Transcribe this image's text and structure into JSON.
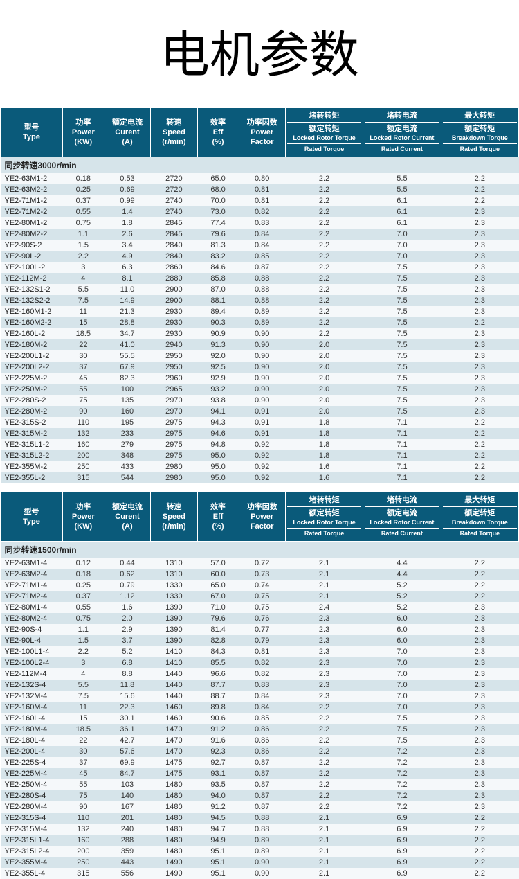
{
  "page_title": "电机参数",
  "headers": {
    "type": {
      "zh": "型号",
      "en": "Type"
    },
    "power": {
      "zh": "功率",
      "en": "Power",
      "unit": "(KW)"
    },
    "current": {
      "zh": "额定电流",
      "en": "Curent",
      "unit": "(A)"
    },
    "speed": {
      "zh": "转速",
      "en": "Speed",
      "unit": "(r/min)"
    },
    "eff": {
      "zh": "效率",
      "en": "Eff",
      "unit": "(%)"
    },
    "pf": {
      "zh": "功率因数",
      "en": "Power",
      "en2": "Factor"
    },
    "lrt": {
      "zh": "堵转转矩",
      "zh2": "额定转矩",
      "en": "Locked Rotor Torque",
      "en2": "Rated Torque"
    },
    "lrc": {
      "zh": "堵转电流",
      "zh2": "额定电流",
      "en": "Locked Rotor Current",
      "en2": "Rated Current"
    },
    "bt": {
      "zh": "最大转矩",
      "zh2": "额定转矩",
      "en": "Breakdown Torque",
      "en2": "Rated Torque"
    }
  },
  "sections": [
    {
      "label": "同步转速3000r/min",
      "rows": [
        [
          "YE2-63M1-2",
          "0.18",
          "0.53",
          "2720",
          "65.0",
          "0.80",
          "2.2",
          "5.5",
          "2.2"
        ],
        [
          "YE2-63M2-2",
          "0.25",
          "0.69",
          "2720",
          "68.0",
          "0.81",
          "2.2",
          "5.5",
          "2.2"
        ],
        [
          "YE2-71M1-2",
          "0.37",
          "0.99",
          "2740",
          "70.0",
          "0.81",
          "2.2",
          "6.1",
          "2.2"
        ],
        [
          "YE2-71M2-2",
          "0.55",
          "1.4",
          "2740",
          "73.0",
          "0.82",
          "2.2",
          "6.1",
          "2.3"
        ],
        [
          "YE2-80M1-2",
          "0.75",
          "1.8",
          "2845",
          "77.4",
          "0.83",
          "2.2",
          "6.1",
          "2.3"
        ],
        [
          "YE2-80M2-2",
          "1.1",
          "2.6",
          "2845",
          "79.6",
          "0.84",
          "2.2",
          "7.0",
          "2.3"
        ],
        [
          "YE2-90S-2",
          "1.5",
          "3.4",
          "2840",
          "81.3",
          "0.84",
          "2.2",
          "7.0",
          "2.3"
        ],
        [
          "YE2-90L-2",
          "2.2",
          "4.9",
          "2840",
          "83.2",
          "0.85",
          "2.2",
          "7.0",
          "2.3"
        ],
        [
          "YE2-100L-2",
          "3",
          "6.3",
          "2860",
          "84.6",
          "0.87",
          "2.2",
          "7.5",
          "2.3"
        ],
        [
          "YE2-112M-2",
          "4",
          "8.1",
          "2880",
          "85.8",
          "0.88",
          "2.2",
          "7.5",
          "2.3"
        ],
        [
          "YE2-132S1-2",
          "5.5",
          "11.0",
          "2900",
          "87.0",
          "0.88",
          "2.2",
          "7.5",
          "2.3"
        ],
        [
          "YE2-132S2-2",
          "7.5",
          "14.9",
          "2900",
          "88.1",
          "0.88",
          "2.2",
          "7.5",
          "2.3"
        ],
        [
          "YE2-160M1-2",
          "11",
          "21.3",
          "2930",
          "89.4",
          "0.89",
          "2.2",
          "7.5",
          "2.3"
        ],
        [
          "YE2-160M2-2",
          "15",
          "28.8",
          "2930",
          "90.3",
          "0.89",
          "2.2",
          "7.5",
          "2.2"
        ],
        [
          "YE2-160L-2",
          "18.5",
          "34.7",
          "2930",
          "90.9",
          "0.90",
          "2.2",
          "7.5",
          "2.3"
        ],
        [
          "YE2-180M-2",
          "22",
          "41.0",
          "2940",
          "91.3",
          "0.90",
          "2.0",
          "7.5",
          "2.3"
        ],
        [
          "YE2-200L1-2",
          "30",
          "55.5",
          "2950",
          "92.0",
          "0.90",
          "2.0",
          "7.5",
          "2.3"
        ],
        [
          "YE2-200L2-2",
          "37",
          "67.9",
          "2950",
          "92.5",
          "0.90",
          "2.0",
          "7.5",
          "2.3"
        ],
        [
          "YE2-225M-2",
          "45",
          "82.3",
          "2960",
          "92.9",
          "0.90",
          "2.0",
          "7.5",
          "2.3"
        ],
        [
          "YE2-250M-2",
          "55",
          "100",
          "2965",
          "93.2",
          "0.90",
          "2.0",
          "7.5",
          "2.3"
        ],
        [
          "YE2-280S-2",
          "75",
          "135",
          "2970",
          "93.8",
          "0.90",
          "2.0",
          "7.5",
          "2.3"
        ],
        [
          "YE2-280M-2",
          "90",
          "160",
          "2970",
          "94.1",
          "0.91",
          "2.0",
          "7.5",
          "2.3"
        ],
        [
          "YE2-315S-2",
          "110",
          "195",
          "2975",
          "94.3",
          "0.91",
          "1.8",
          "7.1",
          "2.2"
        ],
        [
          "YE2-315M-2",
          "132",
          "233",
          "2975",
          "94.6",
          "0.91",
          "1.8",
          "7.1",
          "2.2"
        ],
        [
          "YE2-315L1-2",
          "160",
          "279",
          "2975",
          "94.8",
          "0.92",
          "1.8",
          "7.1",
          "2.2"
        ],
        [
          "YE2-315L2-2",
          "200",
          "348",
          "2975",
          "95.0",
          "0.92",
          "1.8",
          "7.1",
          "2.2"
        ],
        [
          "YE2-355M-2",
          "250",
          "433",
          "2980",
          "95.0",
          "0.92",
          "1.6",
          "7.1",
          "2.2"
        ],
        [
          "YE2-355L-2",
          "315",
          "544",
          "2980",
          "95.0",
          "0.92",
          "1.6",
          "7.1",
          "2.2"
        ]
      ]
    },
    {
      "label": "同步转速1500r/min",
      "rows": [
        [
          "YE2-63M1-4",
          "0.12",
          "0.44",
          "1310",
          "57.0",
          "0.72",
          "2.1",
          "4.4",
          "2.2"
        ],
        [
          "YE2-63M2-4",
          "0.18",
          "0.62",
          "1310",
          "60.0",
          "0.73",
          "2.1",
          "4.4",
          "2.2"
        ],
        [
          "YE2-71M1-4",
          "0.25",
          "0.79",
          "1330",
          "65.0",
          "0.74",
          "2.1",
          "5.2",
          "2.2"
        ],
        [
          "YE2-71M2-4",
          "0.37",
          "1.12",
          "1330",
          "67.0",
          "0.75",
          "2.1",
          "5.2",
          "2.2"
        ],
        [
          "YE2-80M1-4",
          "0.55",
          "1.6",
          "1390",
          "71.0",
          "0.75",
          "2.4",
          "5.2",
          "2.3"
        ],
        [
          "YE2-80M2-4",
          "0.75",
          "2.0",
          "1390",
          "79.6",
          "0.76",
          "2.3",
          "6.0",
          "2.3"
        ],
        [
          "YE2-90S-4",
          "1.1",
          "2.9",
          "1390",
          "81.4",
          "0.77",
          "2.3",
          "6.0",
          "2.3"
        ],
        [
          "YE2-90L-4",
          "1.5",
          "3.7",
          "1390",
          "82.8",
          "0.79",
          "2.3",
          "6.0",
          "2.3"
        ],
        [
          "YE2-100L1-4",
          "2.2",
          "5.2",
          "1410",
          "84.3",
          "0.81",
          "2.3",
          "7.0",
          "2.3"
        ],
        [
          "YE2-100L2-4",
          "3",
          "6.8",
          "1410",
          "85.5",
          "0.82",
          "2.3",
          "7.0",
          "2.3"
        ],
        [
          "YE2-112M-4",
          "4",
          "8.8",
          "1440",
          "96.6",
          "0.82",
          "2.3",
          "7.0",
          "2.3"
        ],
        [
          "YE2-132S-4",
          "5.5",
          "11.8",
          "1440",
          "87.7",
          "0.83",
          "2.3",
          "7.0",
          "2.3"
        ],
        [
          "YE2-132M-4",
          "7.5",
          "15.6",
          "1440",
          "88.7",
          "0.84",
          "2.3",
          "7.0",
          "2.3"
        ],
        [
          "YE2-160M-4",
          "11",
          "22.3",
          "1460",
          "89.8",
          "0.84",
          "2.2",
          "7.0",
          "2.3"
        ],
        [
          "YE2-160L-4",
          "15",
          "30.1",
          "1460",
          "90.6",
          "0.85",
          "2.2",
          "7.5",
          "2.3"
        ],
        [
          "YE2-180M-4",
          "18.5",
          "36.1",
          "1470",
          "91.2",
          "0.86",
          "2.2",
          "7.5",
          "2.3"
        ],
        [
          "YE2-180L-4",
          "22",
          "42.7",
          "1470",
          "91.6",
          "0.86",
          "2.2",
          "7.5",
          "2.3"
        ],
        [
          "YE2-200L-4",
          "30",
          "57.6",
          "1470",
          "92.3",
          "0.86",
          "2.2",
          "7.2",
          "2.3"
        ],
        [
          "YE2-225S-4",
          "37",
          "69.9",
          "1475",
          "92.7",
          "0.87",
          "2.2",
          "7.2",
          "2.3"
        ],
        [
          "YE2-225M-4",
          "45",
          "84.7",
          "1475",
          "93.1",
          "0.87",
          "2.2",
          "7.2",
          "2.3"
        ],
        [
          "YE2-250M-4",
          "55",
          "103",
          "1480",
          "93.5",
          "0.87",
          "2.2",
          "7.2",
          "2.3"
        ],
        [
          "YE2-280S-4",
          "75",
          "140",
          "1480",
          "94.0",
          "0.87",
          "2.2",
          "7.2",
          "2.3"
        ],
        [
          "YE2-280M-4",
          "90",
          "167",
          "1480",
          "91.2",
          "0.87",
          "2.2",
          "7.2",
          "2.3"
        ],
        [
          "YE2-315S-4",
          "110",
          "201",
          "1480",
          "94.5",
          "0.88",
          "2.1",
          "6.9",
          "2.2"
        ],
        [
          "YE2-315M-4",
          "132",
          "240",
          "1480",
          "94.7",
          "0.88",
          "2.1",
          "6.9",
          "2.2"
        ],
        [
          "YE2-315L1-4",
          "160",
          "288",
          "1480",
          "94.9",
          "0.89",
          "2.1",
          "6.9",
          "2.2"
        ],
        [
          "YE2-315L2-4",
          "200",
          "359",
          "1480",
          "95.1",
          "0.89",
          "2.1",
          "6.9",
          "2.2"
        ],
        [
          "YE2-355M-4",
          "250",
          "443",
          "1490",
          "95.1",
          "0.90",
          "2.1",
          "6.9",
          "2.2"
        ],
        [
          "YE2-355L-4",
          "315",
          "556",
          "1490",
          "95.1",
          "0.90",
          "2.1",
          "6.9",
          "2.2"
        ]
      ]
    }
  ],
  "colors": {
    "header_bg": "#0a5a7a",
    "header_fg": "#ffffff",
    "row_odd": "#d6e4ea",
    "row_even": "#f5f8fa",
    "section_fg": "#0a5a7a"
  }
}
